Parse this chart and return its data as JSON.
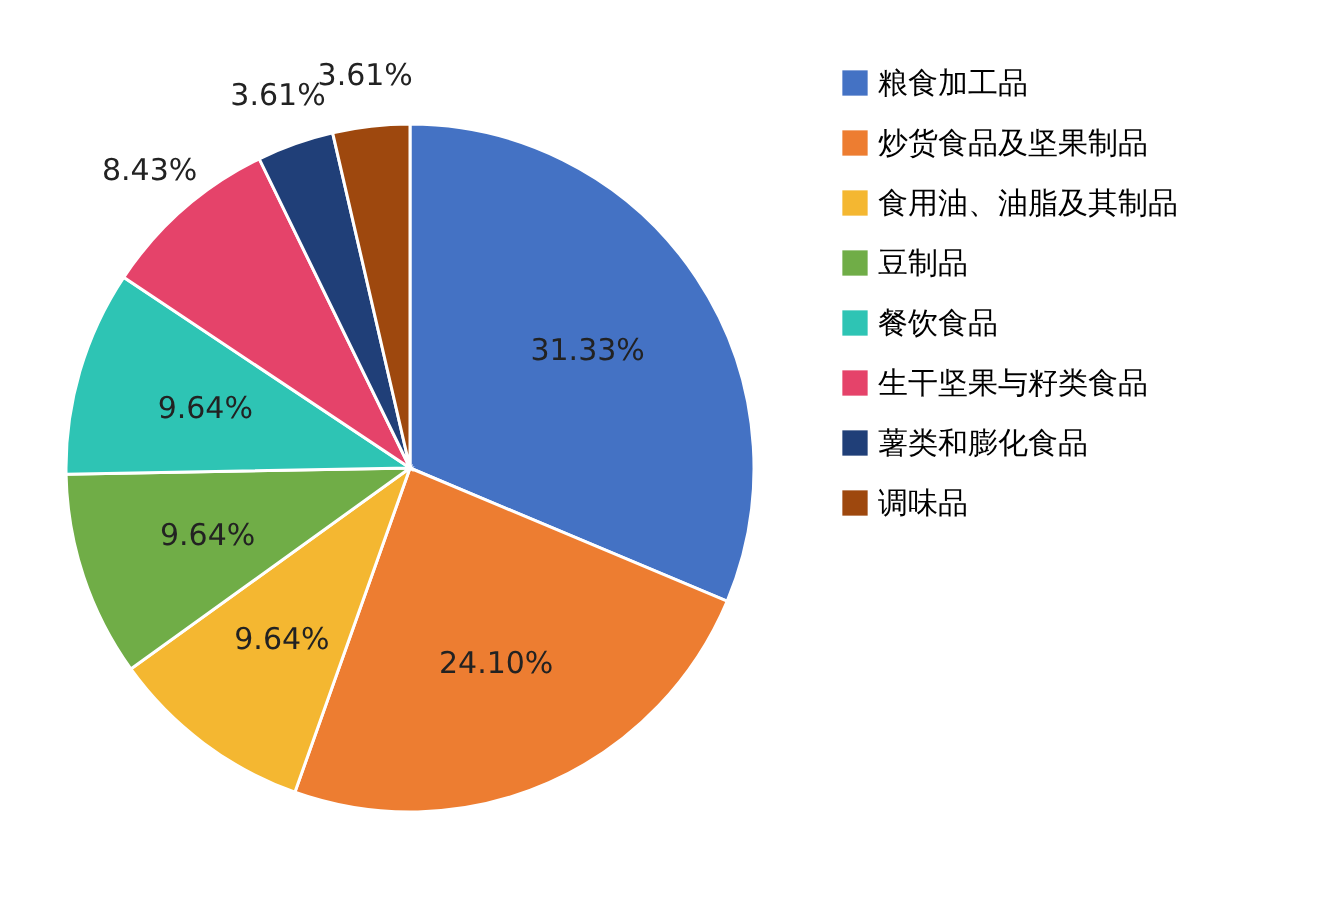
{
  "chart_data": {
    "type": "pie",
    "categories": [
      "粮食加工品",
      "炒货食品及坚果制品",
      "食用油、油脂及其制品",
      "豆制品",
      "餐饮食品",
      "生干坚果与籽类食品",
      "薯类和膨化食品",
      "调味品"
    ],
    "values": [
      31.33,
      24.1,
      9.64,
      9.64,
      9.64,
      8.43,
      3.61,
      3.61
    ],
    "value_labels": [
      "31.33%",
      "24.10%",
      "9.64%",
      "9.64%",
      "9.64%",
      "8.43%",
      "3.61%",
      "3.61%"
    ],
    "colors": [
      "#4472c4",
      "#ed7d31",
      "#f4b731",
      "#70ad47",
      "#2ec4b4",
      "#e5436a",
      "#203f78",
      "#9e480e"
    ],
    "legend": "right"
  }
}
